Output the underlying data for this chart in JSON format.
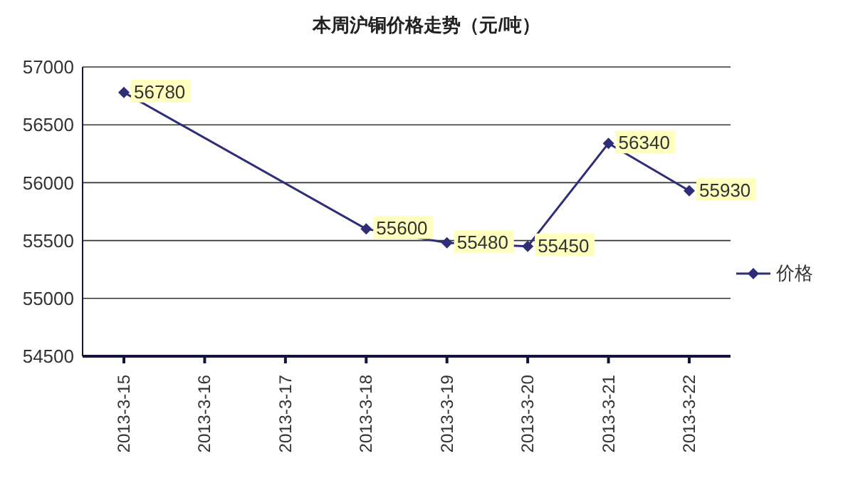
{
  "chart_data": {
    "type": "line",
    "title": "本周沪铜价格走势（元/吨）",
    "categories": [
      "2013-3-15",
      "2013-3-16",
      "2013-3-17",
      "2013-3-18",
      "2013-3-19",
      "2013-3-20",
      "2013-3-21",
      "2013-3-22"
    ],
    "series": [
      {
        "name": "价格",
        "color": "#2e2e78",
        "values": [
          56780,
          null,
          null,
          55600,
          55480,
          55450,
          56340,
          55930
        ]
      }
    ],
    "ylim": [
      54500,
      57000
    ],
    "yticks": [
      54500,
      55000,
      55500,
      56000,
      56500,
      57000
    ],
    "grid": "y",
    "legend": "right",
    "marker": "diamond",
    "line_style": "solid",
    "data_labels": true
  }
}
